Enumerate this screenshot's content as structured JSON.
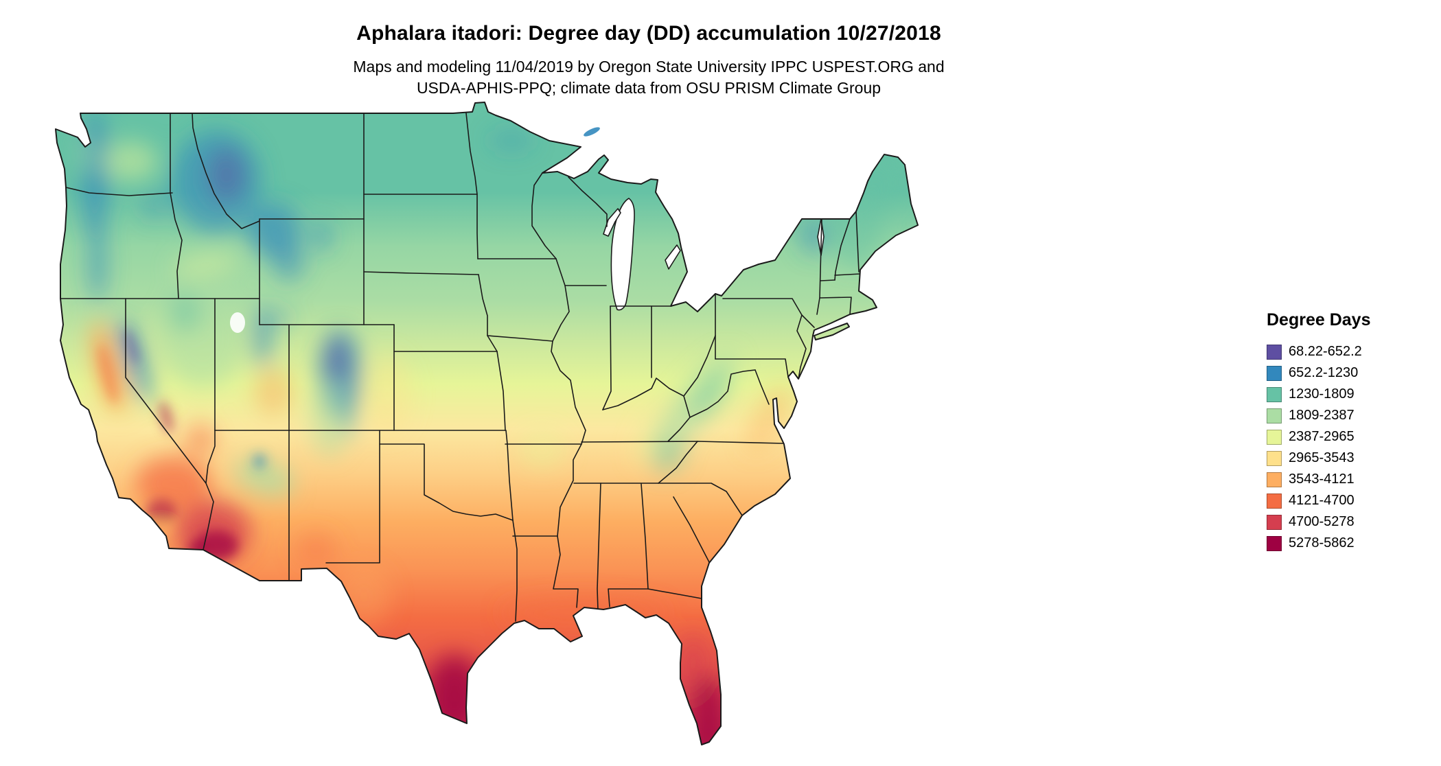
{
  "header": {
    "title": "Aphalara itadori: Degree day (DD) accumulation 10/27/2018",
    "subtitle_line1": "Maps and modeling 11/04/2019 by Oregon State University IPPC USPEST.ORG and",
    "subtitle_line2": "USDA-APHIS-PPQ; climate data from OSU PRISM Climate Group"
  },
  "legend": {
    "title": "Degree Days",
    "entries": [
      {
        "label": "68.22-652.2",
        "color": "#5e4fa2"
      },
      {
        "label": "652.2-1230",
        "color": "#3288bd"
      },
      {
        "label": "1230-1809",
        "color": "#66c2a5"
      },
      {
        "label": "1809-2387",
        "color": "#abdda4"
      },
      {
        "label": "2387-2965",
        "color": "#e6f598"
      },
      {
        "label": "2965-3543",
        "color": "#fee08b"
      },
      {
        "label": "3543-4121",
        "color": "#fdae61"
      },
      {
        "label": "4121-4700",
        "color": "#f46d43"
      },
      {
        "label": "4700-5278",
        "color": "#d53e4f"
      },
      {
        "label": "5278-5862",
        "color": "#9e0142"
      }
    ]
  },
  "map": {
    "region": "Continental United States",
    "kind": "degree-day accumulation raster with state boundaries"
  }
}
